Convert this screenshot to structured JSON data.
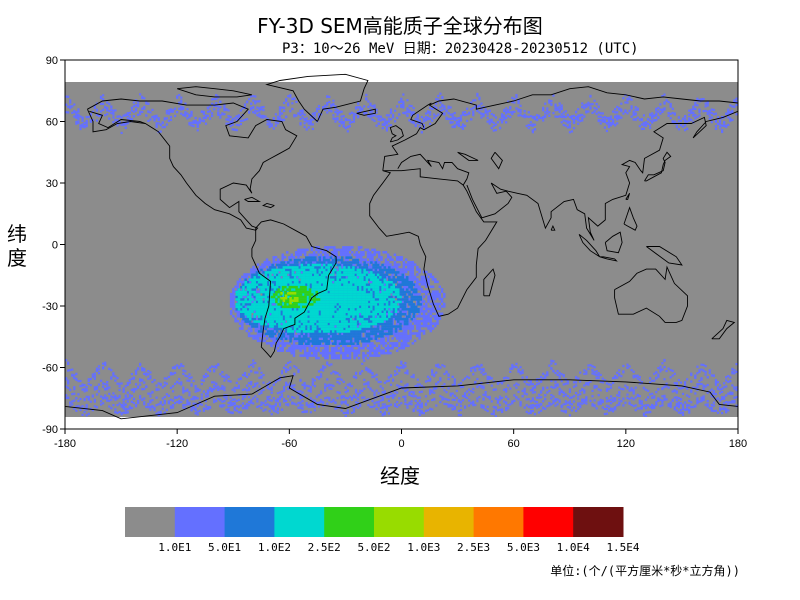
{
  "chart_data": {
    "type": "heatmap",
    "title": "FY-3D SEM高能质子全球分布图",
    "subtitle": "P3：10～26 MeV 日期：20230428-20230512 (UTC)",
    "xlabel": "经度",
    "ylabel": "纬度",
    "xlim": [
      -180,
      180
    ],
    "ylim": [
      -90,
      90
    ],
    "x_ticks": [
      -180,
      -120,
      -60,
      0,
      60,
      120,
      180
    ],
    "y_ticks": [
      90,
      60,
      30,
      0,
      -30,
      -60,
      -90
    ],
    "colorbar": {
      "colors": [
        "#8c8c8c",
        "#6470ff",
        "#1f78d8",
        "#00d8d0",
        "#30d018",
        "#98dc00",
        "#e8b400",
        "#ff7800",
        "#ff0000",
        "#6e1010"
      ],
      "tick_labels": [
        "1.0E1",
        "5.0E1",
        "1.0E2",
        "2.5E2",
        "5.0E2",
        "1.0E3",
        "2.5E3",
        "5.0E3",
        "1.0E4",
        "1.5E4"
      ]
    },
    "unit_label": "单位:(个/(平方厘米*秒*立方角))",
    "features": [
      {
        "name": "South Atlantic Anomaly",
        "lon_range": [
          -95,
          25
        ],
        "lat_range": [
          -58,
          3
        ],
        "level_core": "2.5E2-1.0E3"
      },
      {
        "name": "Northern outer radiation belt",
        "lat_range": [
          58,
          75
        ],
        "level": "5.0E1"
      },
      {
        "name": "Southern outer radiation belt",
        "lat_range": [
          -80,
          -55
        ],
        "level": "5.0E1"
      }
    ]
  }
}
